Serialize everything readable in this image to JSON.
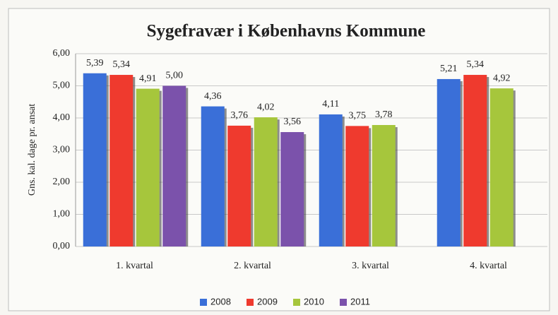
{
  "chart_data": {
    "type": "bar",
    "title": "Sygefravær i Københavns Kommune",
    "y_label": "Gns. kal. dage pr. ansat",
    "categories": [
      "1. kvartal",
      "2. kvartal",
      "3. kvartal",
      "4. kvartal"
    ],
    "series": [
      {
        "name": "2008",
        "color": "#3a6fd8",
        "values": [
          5.39,
          4.36,
          4.11,
          5.21
        ],
        "value_labels": [
          "5,39",
          "4,36",
          "4,11",
          "5,21"
        ]
      },
      {
        "name": "2009",
        "color": "#ef3a2e",
        "values": [
          5.34,
          3.76,
          3.75,
          5.34
        ],
        "value_labels": [
          "5,34",
          "3,76",
          "3,75",
          "5,34"
        ]
      },
      {
        "name": "2010",
        "color": "#a6c63c",
        "values": [
          4.91,
          4.02,
          3.78,
          4.92
        ],
        "value_labels": [
          "4,91",
          "4,02",
          "3,78",
          "4,92"
        ]
      },
      {
        "name": "2011",
        "color": "#7b52ab",
        "values": [
          5.0,
          3.56,
          null,
          null
        ],
        "value_labels": [
          "5,00",
          "3,56",
          null,
          null
        ]
      }
    ],
    "ylim": [
      0,
      6
    ],
    "yticks": [
      {
        "value": 0,
        "label": "0,00"
      },
      {
        "value": 1,
        "label": "1,00"
      },
      {
        "value": 2,
        "label": "2,00"
      },
      {
        "value": 3,
        "label": "3,00"
      },
      {
        "value": 4,
        "label": "4,00"
      },
      {
        "value": 5,
        "label": "5,00"
      },
      {
        "value": 6,
        "label": "6,00"
      }
    ],
    "grid": true,
    "legend": "bottom"
  }
}
